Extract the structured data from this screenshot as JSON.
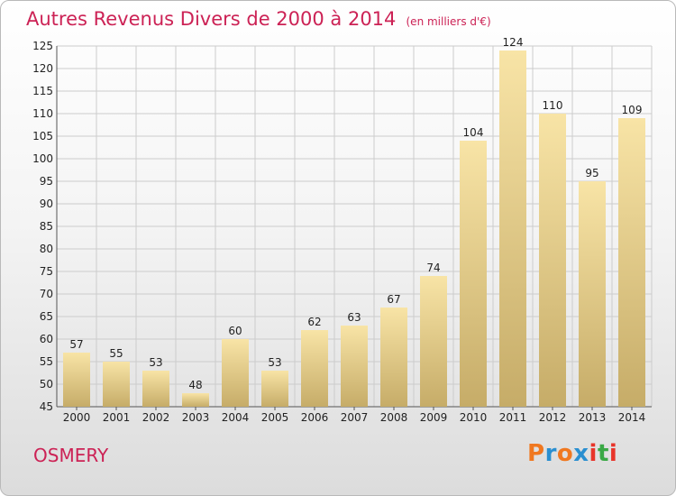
{
  "header": {
    "title": "Autres Revenus Divers de 2000 à 2014",
    "subtitle": "(en milliers d'€)"
  },
  "footer": {
    "town": "OSMERY",
    "logo": "Proxiti",
    "logo_colors": [
      "#f07820",
      "#2a8fd0",
      "#f07820",
      "#2a8fd0",
      "#e8342a",
      "#3aa845",
      "#e8342a"
    ]
  },
  "colors": {
    "title": "#cc2255",
    "bar_light": "#f8e4a6",
    "bar_dark": "#c6ac68",
    "grid": "#cccccc"
  },
  "chart_data": {
    "type": "bar",
    "categories": [
      "2000",
      "2001",
      "2002",
      "2003",
      "2004",
      "2005",
      "2006",
      "2007",
      "2008",
      "2009",
      "2010",
      "2011",
      "2012",
      "2013",
      "2014"
    ],
    "values": [
      57,
      55,
      53,
      48,
      60,
      53,
      62,
      63,
      67,
      74,
      104,
      124,
      110,
      95,
      109
    ],
    "ylim": [
      45,
      125
    ],
    "yticks": [
      45,
      50,
      55,
      60,
      65,
      70,
      75,
      80,
      85,
      90,
      95,
      100,
      105,
      110,
      115,
      120,
      125
    ],
    "grid": true,
    "title": "Autres Revenus Divers de 2000 à 2014",
    "xlabel": "",
    "ylabel": ""
  }
}
